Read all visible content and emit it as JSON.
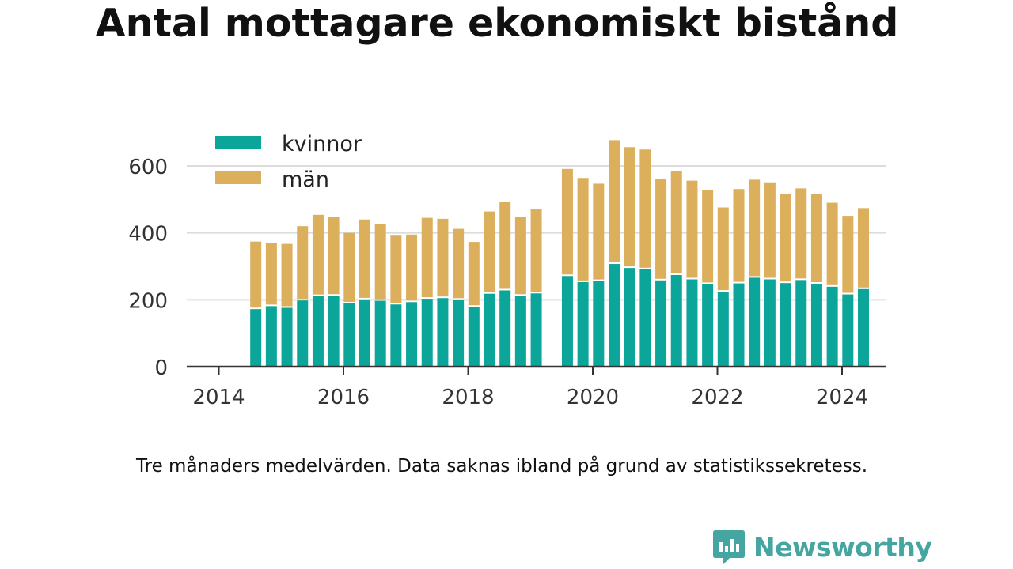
{
  "title": "Antal mottagare ekonomiskt bistånd",
  "note": "Tre månaders medelvärden. Data saknas ibland på grund av statistikssekretess.",
  "brand": {
    "name": "Newsworthy",
    "color": "#45a5a0",
    "icon": "newsworthy-logo-icon"
  },
  "chart_data": {
    "type": "bar",
    "stacked": true,
    "x_tick_labels": [
      "2014",
      "2016",
      "2018",
      "2020",
      "2022",
      "2024"
    ],
    "y_ticks": [
      0,
      200,
      400,
      600
    ],
    "ylim": [
      0,
      700
    ],
    "grid": true,
    "legend_position": "top-left",
    "categories": [
      "2014-Q2",
      "2014-Q3",
      "2014-Q4",
      "2015-Q1",
      "2015-Q2",
      "2015-Q3",
      "2015-Q4",
      "2016-Q1",
      "2016-Q2",
      "2016-Q3",
      "2016-Q4",
      "2017-Q1",
      "2017-Q2",
      "2017-Q3",
      "2017-Q4",
      "2018-Q1",
      "2018-Q2",
      "2018-Q3",
      "2018-Q4",
      "2019-Q1",
      "2019-Q2",
      "2019-Q3",
      "2019-Q4",
      "2020-Q1",
      "2020-Q2",
      "2020-Q3",
      "2020-Q4",
      "2021-Q1",
      "2021-Q2",
      "2021-Q3",
      "2021-Q4",
      "2022-Q1",
      "2022-Q2",
      "2022-Q3",
      "2022-Q4",
      "2023-Q1",
      "2023-Q2",
      "2023-Q3",
      "2023-Q4",
      "2024-Q1"
    ],
    "series": [
      {
        "name": "kvinnor",
        "color": "#0ca59a",
        "values": [
          172,
          181,
          176,
          198,
          211,
          212,
          189,
          201,
          197,
          186,
          193,
          203,
          205,
          200,
          179,
          218,
          228,
          212,
          219,
          null,
          271,
          253,
          256,
          307,
          295,
          291,
          258,
          274,
          261,
          247,
          224,
          249,
          266,
          261,
          250,
          259,
          248,
          239,
          216,
          232
        ]
      },
      {
        "name": "män",
        "color": "#dcaf5d",
        "values": [
          202,
          188,
          191,
          222,
          243,
          236,
          211,
          239,
          230,
          208,
          202,
          242,
          237,
          212,
          194,
          246,
          264,
          236,
          251,
          null,
          320,
          311,
          291,
          370,
          361,
          358,
          303,
          310,
          295,
          282,
          252,
          282,
          293,
          290,
          266,
          274,
          268,
          251,
          235,
          242
        ]
      }
    ]
  }
}
